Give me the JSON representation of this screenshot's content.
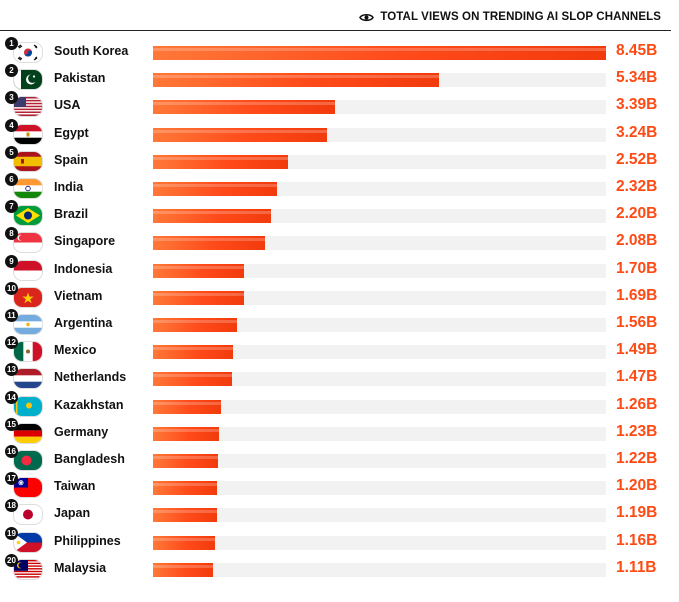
{
  "header": {
    "title": "TOTAL VIEWS ON TRENDING AI SLOP CHANNELS",
    "icon": "eye-icon"
  },
  "chart_data": {
    "type": "bar",
    "orientation": "horizontal",
    "xlim": [
      0,
      8.45
    ],
    "unit": "B",
    "bar_color": "#ff4a1a",
    "value_color": "#ff4a14",
    "categories": [
      "South Korea",
      "Pakistan",
      "USA",
      "Egypt",
      "Spain",
      "India",
      "Brazil",
      "Singapore",
      "Indonesia",
      "Vietnam",
      "Argentina",
      "Mexico",
      "Netherlands",
      "Kazakhstan",
      "Germany",
      "Bangladesh",
      "Taiwan",
      "Japan",
      "Philippines",
      "Malaysia"
    ],
    "values": [
      8.45,
      5.34,
      3.39,
      3.24,
      2.52,
      2.32,
      2.2,
      2.08,
      1.7,
      1.69,
      1.56,
      1.49,
      1.47,
      1.26,
      1.23,
      1.22,
      1.2,
      1.19,
      1.16,
      1.11
    ],
    "labels": [
      "8.45B",
      "5.34B",
      "3.39B",
      "3.24B",
      "2.52B",
      "2.32B",
      "2.20B",
      "2.08B",
      "1.70B",
      "1.69B",
      "1.56B",
      "1.49B",
      "1.47B",
      "1.26B",
      "1.23B",
      "1.22B",
      "1.20B",
      "1.19B",
      "1.16B",
      "1.11B"
    ],
    "ranks": [
      "1",
      "2",
      "3",
      "4",
      "5",
      "6",
      "7",
      "8",
      "9",
      "10",
      "11",
      "12",
      "13",
      "14",
      "15",
      "16",
      "17",
      "18",
      "19",
      "20"
    ],
    "flags": [
      "south-korea-flag-icon",
      "pakistan-flag-icon",
      "usa-flag-icon",
      "egypt-flag-icon",
      "spain-flag-icon",
      "india-flag-icon",
      "brazil-flag-icon",
      "singapore-flag-icon",
      "indonesia-flag-icon",
      "vietnam-flag-icon",
      "argentina-flag-icon",
      "mexico-flag-icon",
      "netherlands-flag-icon",
      "kazakhstan-flag-icon",
      "germany-flag-icon",
      "bangladesh-flag-icon",
      "taiwan-flag-icon",
      "japan-flag-icon",
      "philippines-flag-icon",
      "malaysia-flag-icon"
    ]
  }
}
